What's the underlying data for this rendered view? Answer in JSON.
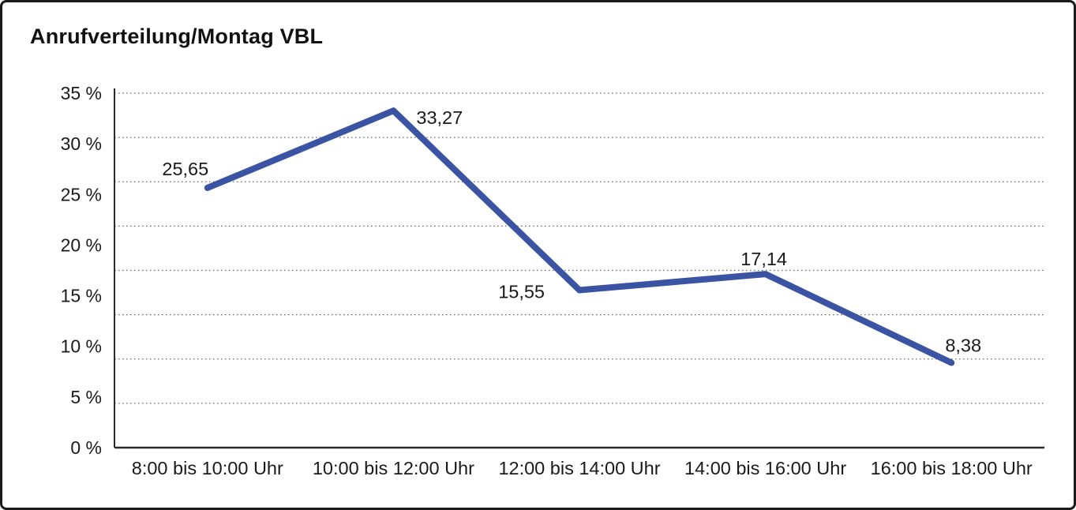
{
  "title": "Anrufverteilung/Montag VBL",
  "chart_data": {
    "type": "line",
    "title": "Anrufverteilung/Montag VBL",
    "categories": [
      "8:00 bis 10:00 Uhr",
      "10:00 bis 12:00 Uhr",
      "12:00 bis 14:00 Uhr",
      "14:00 bis 16:00 Uhr",
      "16:00 bis 18:00 Uhr"
    ],
    "values": [
      25.65,
      33.27,
      15.55,
      17.14,
      8.38
    ],
    "point_labels": [
      "25,65",
      "33,27",
      "15,55",
      "17,14",
      "8,38"
    ],
    "xlabel": "",
    "ylabel": "",
    "ylim": [
      0,
      35
    ],
    "y_tick_step": 5,
    "y_tick_labels": [
      "35 %",
      "30 %",
      "25 %",
      "20 %",
      "15 %",
      "10 %",
      "5 %",
      "0 %"
    ],
    "grid": "horizontal-dotted",
    "grid_intervals": 8,
    "legend": "none",
    "line_color": "#3A54A3",
    "grid_color": "#6e6e6e",
    "axis_color": "#2b2b2b",
    "text_color": "#1a1a1a",
    "point_label_layout": {
      "anchors": [
        "middle",
        "start",
        "end",
        "middle",
        "middle"
      ],
      "dx": [
        -28,
        29,
        -44,
        -2,
        15
      ],
      "dy": [
        -16,
        17,
        10,
        -11,
        -14
      ]
    }
  }
}
